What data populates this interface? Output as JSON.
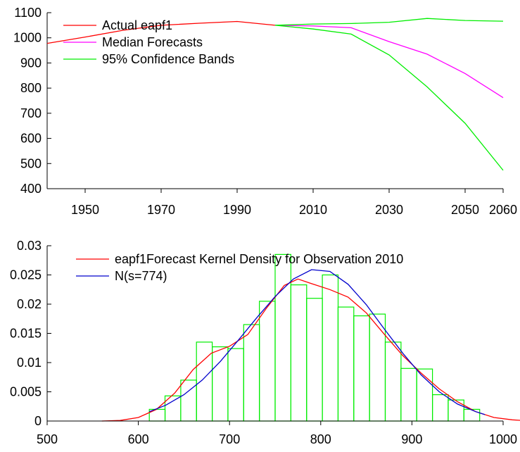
{
  "chart_data": [
    {
      "type": "line",
      "title": "",
      "xlabel": "",
      "ylabel": "",
      "xlim": [
        1940,
        2060
      ],
      "ylim": [
        400,
        1100
      ],
      "x_ticks": [
        1950,
        1970,
        1990,
        2010,
        2030,
        2050,
        2060
      ],
      "x_tick_labels": [
        "1950",
        "1970",
        "1990",
        "2010",
        "2030",
        "2050",
        "2060"
      ],
      "y_ticks": [
        400,
        500,
        600,
        700,
        800,
        900,
        1000,
        1100
      ],
      "y_tick_labels": [
        "400",
        "500",
        "600",
        "700",
        "800",
        "900",
        "1000",
        "1100"
      ],
      "legend": "top-left",
      "grid": false,
      "series": [
        {
          "name": "Actual eapf1",
          "color": "#ff0000",
          "points": [
            [
              1940,
              978
            ],
            [
              1950,
              1003
            ],
            [
              1960,
              1030
            ],
            [
              1970,
              1050
            ],
            [
              1980,
              1058
            ],
            [
              1990,
              1065
            ],
            [
              2000,
              1050
            ]
          ]
        },
        {
          "name": "Median Forecasts",
          "color": "#ff00ff",
          "points": [
            [
              2000,
              1050
            ],
            [
              2010,
              1047
            ],
            [
              2020,
              1040
            ],
            [
              2030,
              985
            ],
            [
              2040,
              935
            ],
            [
              2050,
              858
            ],
            [
              2060,
              762
            ]
          ]
        },
        {
          "name": "95% Confidence Bands",
          "color": "#00ee00",
          "points": [
            [
              2000,
              1050
            ],
            [
              2010,
              1035
            ],
            [
              2020,
              1015
            ],
            [
              2030,
              932
            ],
            [
              2040,
              805
            ],
            [
              2050,
              660
            ],
            [
              2060,
              473
            ]
          ]
        },
        {
          "name": "",
          "color": "#00ee00",
          "points": [
            [
              2000,
              1050
            ],
            [
              2010,
              1055
            ],
            [
              2020,
              1057
            ],
            [
              2030,
              1062
            ],
            [
              2040,
              1077
            ],
            [
              2050,
              1069
            ],
            [
              2060,
              1066
            ]
          ]
        }
      ]
    },
    {
      "type": "histogram",
      "title": "",
      "xlabel": "",
      "ylabel": "",
      "xlim": [
        500,
        1000
      ],
      "ylim": [
        0,
        0.03
      ],
      "x_ticks": [
        500,
        600,
        700,
        800,
        900,
        1000
      ],
      "x_tick_labels": [
        "500",
        "600",
        "700",
        "800",
        "900",
        "1000"
      ],
      "y_ticks": [
        0,
        0.005,
        0.01,
        0.015,
        0.02,
        0.025,
        0.03
      ],
      "y_tick_labels": [
        "0",
        "0.005",
        "0.01",
        "0.015",
        "0.02",
        "0.025",
        "0.03"
      ],
      "legend": "top-left",
      "grid": false,
      "histogram": {
        "color": "#00ee00",
        "bin_edges": [
          612,
          629.25,
          646.5,
          663.75,
          681,
          698.25,
          715.5,
          732.75,
          750,
          767.25,
          784.5,
          801.75,
          819,
          836.25,
          853.5,
          870.75,
          888,
          905.25,
          922.5,
          939.75,
          957,
          974.25
        ],
        "values": [
          0.002,
          0.0043,
          0.007,
          0.0135,
          0.0127,
          0.0124,
          0.0165,
          0.0205,
          0.0285,
          0.0233,
          0.021,
          0.025,
          0.0195,
          0.018,
          0.0183,
          0.0135,
          0.009,
          0.0089,
          0.0045,
          0.0036,
          0.002
        ]
      },
      "series": [
        {
          "name": "eapf1Forecast Kernel Density for Observation 2010",
          "color": "#ff0000",
          "x": [
            560,
            580,
            600,
            620,
            640,
            660,
            680,
            700,
            720,
            740,
            760,
            775,
            790,
            810,
            830,
            850,
            870,
            890,
            910,
            930,
            950,
            970,
            990,
            1010,
            1030
          ],
          "values": [
            0,
            0.0001,
            0.0006,
            0.002,
            0.0048,
            0.0088,
            0.0116,
            0.0128,
            0.0148,
            0.0192,
            0.0232,
            0.0243,
            0.0235,
            0.0225,
            0.0212,
            0.0185,
            0.0148,
            0.0112,
            0.0082,
            0.0055,
            0.0033,
            0.0016,
            0.0006,
            0.0002,
            0
          ]
        },
        {
          "name": "N(s=774)",
          "color": "#0000cc",
          "x": [
            612,
            630,
            650,
            670,
            690,
            710,
            730,
            750,
            770,
            790,
            810,
            830,
            850,
            870,
            890,
            910,
            930,
            950,
            970,
            980
          ],
          "values": [
            0.0016,
            0.0027,
            0.0045,
            0.007,
            0.0102,
            0.0139,
            0.0177,
            0.0213,
            0.0243,
            0.0259,
            0.0256,
            0.0234,
            0.0199,
            0.0157,
            0.0116,
            0.0079,
            0.005,
            0.0029,
            0.0016,
            0.0011
          ]
        }
      ]
    }
  ]
}
